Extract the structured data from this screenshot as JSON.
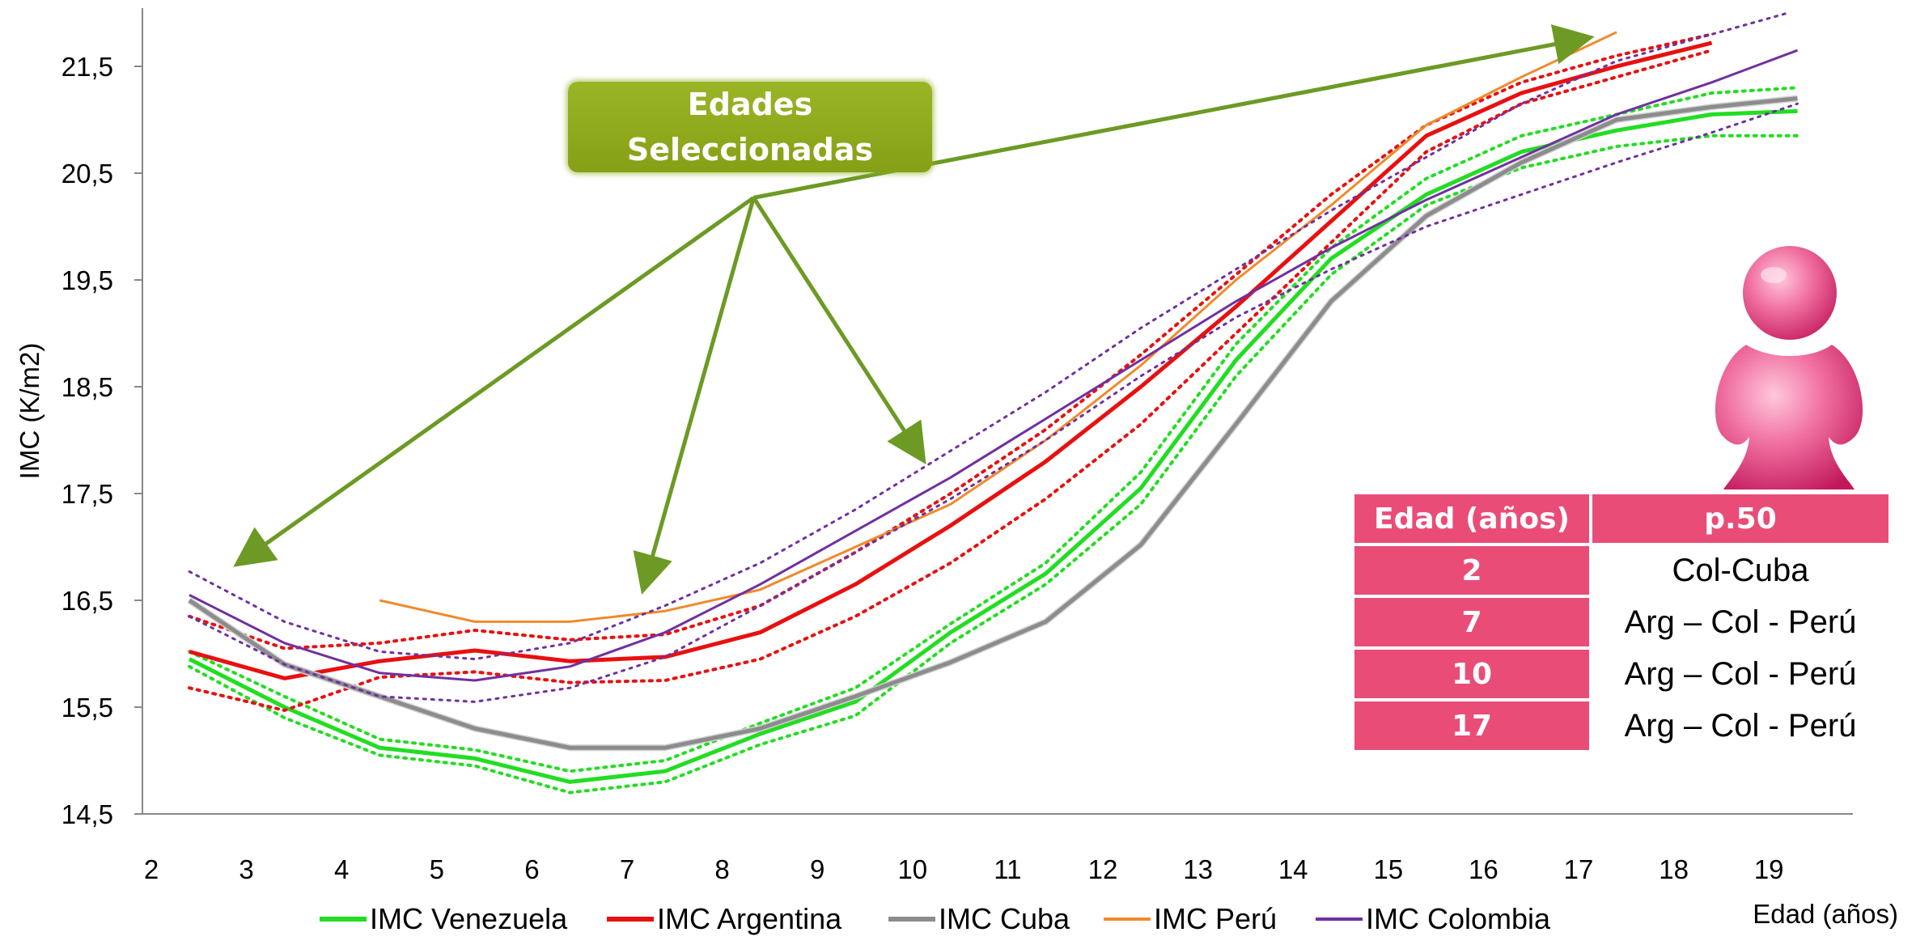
{
  "chart_data": {
    "type": "line",
    "xlabel": "Edad (años)",
    "ylabel": "IMC (K/m2)",
    "x_ticks": [
      "2",
      "3",
      "4",
      "5",
      "6",
      "7",
      "8",
      "9",
      "10",
      "11",
      "12",
      "13",
      "14",
      "15",
      "16",
      "17",
      "18",
      "19"
    ],
    "y_ticks": [
      "14,5",
      "15,5",
      "16,5",
      "17,5",
      "18,5",
      "19,5",
      "20,5",
      "21,5"
    ],
    "xlim": [
      2,
      19.6
    ],
    "ylim": [
      14.5,
      22.0
    ],
    "grid": false,
    "legend_position": "bottom",
    "series": [
      {
        "name": "IMC Venezuela",
        "color": "#22dd22",
        "style": "solid",
        "width": 5,
        "legend": true,
        "x": [
          2.4,
          3.4,
          4.4,
          5.4,
          6.4,
          7.4,
          8.4,
          9.4,
          10.4,
          11.4,
          12.4,
          13.4,
          14.4,
          15.4,
          16.4,
          17.4,
          18.4,
          19.3
        ],
        "y": [
          15.95,
          15.5,
          15.12,
          15.02,
          14.8,
          14.9,
          15.25,
          15.55,
          16.2,
          16.75,
          17.55,
          18.75,
          19.7,
          20.3,
          20.7,
          20.9,
          21.05,
          21.08
        ]
      },
      {
        "name": "",
        "color": "#22dd22",
        "style": "dotted",
        "width": 4,
        "legend": false,
        "x": [
          2.4,
          3.4,
          4.4,
          5.4,
          6.4,
          7.4,
          8.4,
          9.4,
          10.4,
          11.4,
          12.4,
          13.4,
          14.4,
          15.4,
          16.4,
          17.4,
          18.4,
          19.3
        ],
        "y": [
          16.02,
          15.6,
          15.2,
          15.1,
          14.9,
          15.0,
          15.35,
          15.68,
          16.28,
          16.85,
          17.7,
          18.9,
          19.8,
          20.45,
          20.85,
          21.05,
          21.25,
          21.3
        ]
      },
      {
        "name": "",
        "color": "#22dd22",
        "style": "dotted",
        "width": 4,
        "legend": false,
        "x": [
          2.4,
          3.4,
          4.4,
          5.4,
          6.4,
          7.4,
          8.4,
          9.4,
          10.4,
          11.4,
          12.4,
          13.4,
          14.4,
          15.4,
          16.4,
          17.4,
          18.4,
          19.3
        ],
        "y": [
          15.88,
          15.4,
          15.05,
          14.95,
          14.7,
          14.8,
          15.15,
          15.42,
          16.1,
          16.65,
          17.4,
          18.6,
          19.55,
          20.2,
          20.55,
          20.75,
          20.85,
          20.85
        ]
      },
      {
        "name": "IMC Argentina",
        "color": "#e81010",
        "style": "solid",
        "width": 5,
        "legend": true,
        "x": [
          2.4,
          3.4,
          4.4,
          5.4,
          6.4,
          7.4,
          8.4,
          9.4,
          10.4,
          11.4,
          12.4,
          13.4,
          14.4,
          15.4,
          16.4,
          17.4,
          18.4
        ],
        "y": [
          16.02,
          15.77,
          15.93,
          16.03,
          15.93,
          15.97,
          16.2,
          16.65,
          17.2,
          17.8,
          18.5,
          19.25,
          20.05,
          20.85,
          21.25,
          21.5,
          21.72
        ]
      },
      {
        "name": "",
        "color": "#e81010",
        "style": "dotted",
        "width": 4,
        "legend": false,
        "x": [
          2.4,
          3.4,
          4.4,
          5.4,
          6.4,
          7.4,
          8.4,
          9.4,
          10.4,
          11.4,
          12.4,
          13.4,
          14.4,
          15.4,
          16.4,
          17.4,
          18.4
        ],
        "y": [
          16.35,
          16.05,
          16.1,
          16.22,
          16.13,
          16.18,
          16.45,
          16.95,
          17.5,
          18.1,
          18.8,
          19.55,
          20.3,
          20.95,
          21.35,
          21.6,
          21.8
        ]
      },
      {
        "name": "",
        "color": "#e81010",
        "style": "dotted",
        "width": 4,
        "legend": false,
        "x": [
          2.4,
          3.4,
          4.4,
          5.4,
          6.4,
          7.4,
          8.4,
          9.4,
          10.4,
          11.4,
          12.4,
          13.4,
          14.4,
          15.4,
          16.4,
          17.4,
          18.4
        ],
        "y": [
          15.68,
          15.47,
          15.78,
          15.83,
          15.73,
          15.75,
          15.95,
          16.35,
          16.85,
          17.45,
          18.15,
          19.0,
          19.85,
          20.7,
          21.15,
          21.4,
          21.65
        ]
      },
      {
        "name": "IMC Cuba",
        "color": "#8c8c8c",
        "style": "solid",
        "width": 5,
        "legend": true,
        "x": [
          2.4,
          3.4,
          4.4,
          5.4,
          6.4,
          7.4,
          8.4,
          9.4,
          10.4,
          11.4,
          12.4,
          13.4,
          14.4,
          15.4,
          16.4,
          17.4,
          18.4,
          19.3
        ],
        "y": [
          16.5,
          15.9,
          15.6,
          15.3,
          15.12,
          15.12,
          15.3,
          15.6,
          15.92,
          16.3,
          17.02,
          18.15,
          19.3,
          20.1,
          20.6,
          21.0,
          21.12,
          21.2
        ]
      },
      {
        "name": "IMC Perú",
        "color": "#f08a2a",
        "style": "solid",
        "width": 3,
        "legend": true,
        "x": [
          4.4,
          5.4,
          6.4,
          7.4,
          8.4,
          9.4,
          10.4,
          11.4,
          12.4,
          13.4,
          14.4,
          15.4,
          16.4,
          17.4
        ],
        "y": [
          16.5,
          16.3,
          16.3,
          16.4,
          16.6,
          17.0,
          17.4,
          18.0,
          18.7,
          19.5,
          20.2,
          20.95,
          21.4,
          21.82
        ]
      },
      {
        "name": "IMC Colombia",
        "color": "#7030a0",
        "style": "solid",
        "width": 3,
        "legend": true,
        "x": [
          2.4,
          3.4,
          4.4,
          5.4,
          6.4,
          7.4,
          8.4,
          9.4,
          10.4,
          11.4,
          12.4,
          13.4,
          14.4,
          15.4,
          16.4,
          17.4,
          18.4,
          19.3
        ],
        "y": [
          16.55,
          16.1,
          15.82,
          15.75,
          15.88,
          16.2,
          16.65,
          17.15,
          17.65,
          18.2,
          18.75,
          19.3,
          19.8,
          20.25,
          20.65,
          21.05,
          21.35,
          21.65
        ]
      },
      {
        "name": "",
        "color": "#7030a0",
        "style": "dotted",
        "width": 3,
        "legend": false,
        "x": [
          2.4,
          3.4,
          4.4,
          5.4,
          6.4,
          7.4,
          8.4,
          9.4,
          10.4,
          11.4,
          12.4,
          13.4,
          14.4,
          15.4,
          16.4,
          17.4,
          18.4,
          19.2
        ],
        "y": [
          16.77,
          16.3,
          16.02,
          15.95,
          16.1,
          16.45,
          16.85,
          17.35,
          17.9,
          18.45,
          19.05,
          19.6,
          20.15,
          20.65,
          21.15,
          21.55,
          21.8,
          22.0
        ]
      },
      {
        "name": "",
        "color": "#7030a0",
        "style": "dotted",
        "width": 3,
        "legend": false,
        "x": [
          2.4,
          3.4,
          4.4,
          5.4,
          6.4,
          7.4,
          8.4,
          9.4,
          10.4,
          11.4,
          12.4,
          13.4,
          14.4,
          15.4,
          16.4,
          17.4,
          18.4,
          19.3
        ],
        "y": [
          16.35,
          15.9,
          15.6,
          15.55,
          15.68,
          15.97,
          16.45,
          16.95,
          17.45,
          18.0,
          18.6,
          19.15,
          19.6,
          20.0,
          20.3,
          20.6,
          20.88,
          21.15
        ]
      }
    ],
    "annotations": {
      "callout_line1": "Edades",
      "callout_line2": "Seleccionadas",
      "arrow_color": "#6c9a24",
      "arrow_origin": {
        "x": 8.33,
        "y": 20.27
      },
      "arrow_targets": [
        {
          "x": 3.0,
          "y": 16.9
        },
        {
          "x": 7.2,
          "y": 16.7
        },
        {
          "x": 10.05,
          "y": 17.9
        },
        {
          "x": 17.0,
          "y": 21.75
        }
      ]
    }
  },
  "table": {
    "headers": [
      "Edad (años)",
      "p.50"
    ],
    "rows": [
      {
        "age": "2",
        "p50": "Col-Cuba"
      },
      {
        "age": "7",
        "p50": "Arg – Col - Perú"
      },
      {
        "age": "10",
        "p50": "Arg – Col - Perú"
      },
      {
        "age": "17",
        "p50": "Arg – Col - Perú"
      }
    ],
    "color": "#ea4c78"
  },
  "figure_icon": "pink-pawn-figure-icon"
}
